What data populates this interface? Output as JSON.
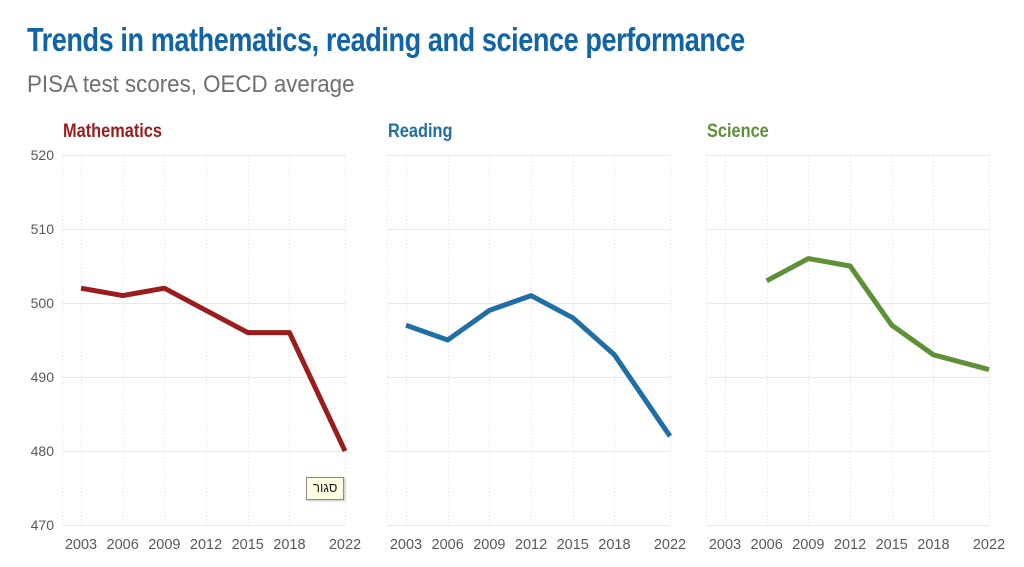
{
  "header": {
    "title": "Trends in mathematics, reading and science performance",
    "subtitle": "PISA test scores, OECD average"
  },
  "colors": {
    "title": "#1164a5",
    "subtitle": "#6f6f6f",
    "axis_text": "#595959",
    "grid_h": "#e9e9e9",
    "grid_v": "#dedede",
    "tooltip_bg": "#fffee1",
    "tooltip_border": "#8a8a8a",
    "tooltip_text": "#1c1c1c"
  },
  "tooltip": {
    "text": "סגור"
  },
  "chart_data": {
    "type": "line",
    "title": "Trends in mathematics, reading and science performance",
    "subtitle": "PISA test scores, OECD average",
    "categories": [
      2003,
      2006,
      2009,
      2012,
      2015,
      2018,
      2022
    ],
    "ylim": [
      470,
      520
    ],
    "yticks": [
      470,
      480,
      490,
      500,
      510,
      520
    ],
    "grid": true,
    "legend": "none",
    "panels": [
      {
        "title": "Mathematics",
        "color": "#9a1c1c",
        "values": [
          502,
          501,
          502,
          499,
          496,
          496,
          480
        ]
      },
      {
        "title": "Reading",
        "color": "#1f6ea6",
        "values": [
          497,
          495,
          499,
          501,
          498,
          493,
          482
        ]
      },
      {
        "title": "Science",
        "color": "#5e9036",
        "values": [
          null,
          503,
          506,
          505,
          497,
          493,
          491
        ]
      }
    ]
  }
}
